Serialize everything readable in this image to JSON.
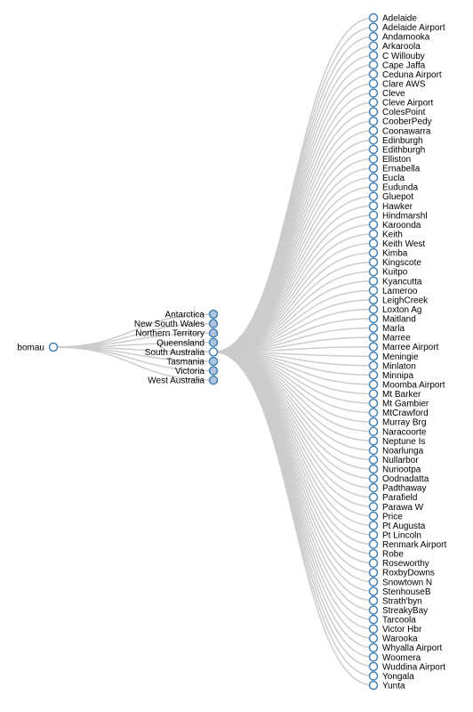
{
  "tree": {
    "root": {
      "label": "bomau",
      "collapsed": false
    },
    "regions": [
      {
        "label": "Antarctica",
        "collapsed": true
      },
      {
        "label": "New South Wales",
        "collapsed": true
      },
      {
        "label": "Northern Territory",
        "collapsed": true
      },
      {
        "label": "Queensland",
        "collapsed": true
      },
      {
        "label": "South Australia",
        "collapsed": false
      },
      {
        "label": "Tasmania",
        "collapsed": true
      },
      {
        "label": "Victoria",
        "collapsed": true
      },
      {
        "label": "West Australia",
        "collapsed": true
      }
    ],
    "expanded_region": "South Australia",
    "stations": [
      "Adelaide",
      "Adelaide Airport",
      "Andamooka",
      "Arkaroola",
      "C Willouby",
      "Cape Jaffa",
      "Ceduna Airport",
      "Clare AWS",
      "Cleve",
      "Cleve Airport",
      "ColesPoint",
      "CooberPedy",
      "Coonawarra",
      "Edinburgh",
      "Edithburgh",
      "Elliston",
      "Ernabella",
      "Eucla",
      "Eudunda",
      "Gluepot",
      "Hawker",
      "Hindmarshl",
      "Karoonda",
      "Keith",
      "Keith West",
      "Kimba",
      "Kingscote",
      "Kuitpo",
      "Kyancutta",
      "Lameroo",
      "LeighCreek",
      "Loxton Ag",
      "Maitland",
      "Marla",
      "Marree",
      "Marree Airport",
      "Meningie",
      "Minlaton",
      "Minnipa",
      "Moomba Airport",
      "Mt Barker",
      "Mt Gambier",
      "MtCrawford",
      "Murray Brg",
      "Naracoorte",
      "Neptune Is",
      "Noarlunga",
      "Nullarbor",
      "Nuriootpa",
      "Oodnadatta",
      "Padthaway",
      "Parafield",
      "Parawa W",
      "Price",
      "Pt Augusta",
      "Pt Lincoln",
      "Renmark Airport",
      "Robe",
      "Roseworthy",
      "RoxbyDowns",
      "Snowtown N",
      "StenhouseB",
      "Strath'byn",
      "StreakyBay",
      "Tarcoola",
      "Victor Hbr",
      "Warooka",
      "Whyalla Airport",
      "Woomera",
      "Wuddina Airport",
      "Yongala",
      "Yunta"
    ],
    "colors": {
      "link": "#cccccc",
      "node_stroke": "#4682b4",
      "collapsed_fill": "#b0c4de",
      "open_fill": "#ffffff",
      "text": "#000000"
    }
  }
}
